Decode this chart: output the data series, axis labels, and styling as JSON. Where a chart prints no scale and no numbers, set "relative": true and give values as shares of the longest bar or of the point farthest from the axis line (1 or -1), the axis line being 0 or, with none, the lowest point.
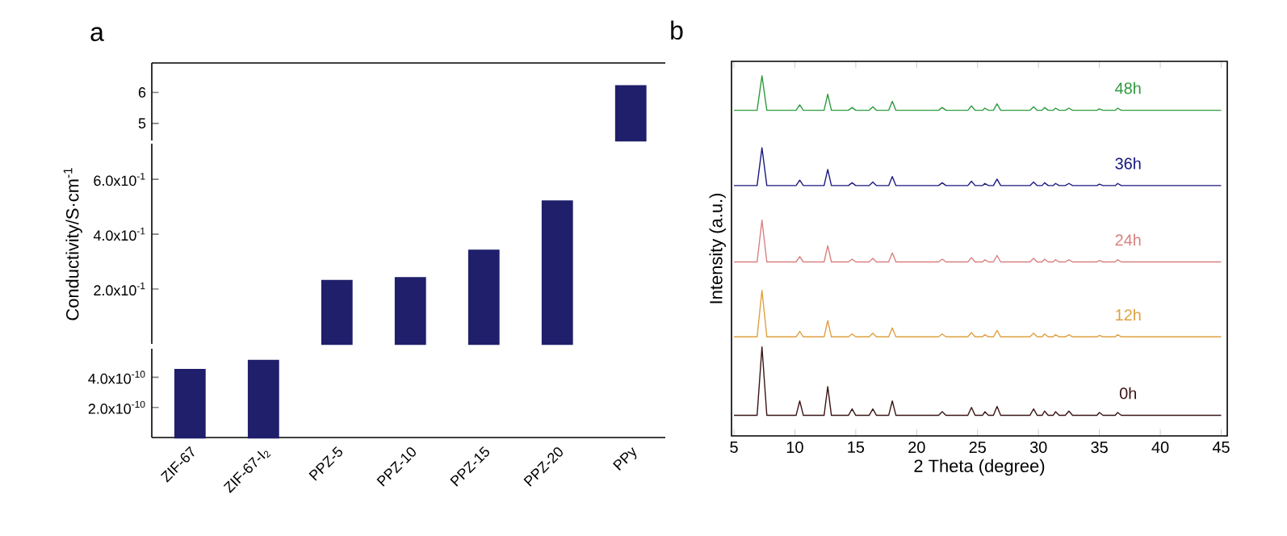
{
  "chart_data": [
    {
      "type": "bar",
      "title": "a",
      "categories": [
        null,
        null,
        null,
        null,
        null,
        null,
        null
      ],
      "values": [
        null,
        null,
        null,
        null,
        null,
        null,
        6.2
      ],
      "color": "#1f1f6b",
      "ylim": [
        4.45,
        6.95
      ],
      "yticks": [
        5,
        6
      ],
      "tick_labels": "y"
    },
    {
      "type": "bar",
      "ylabel": "Conductivity/S·cm$^{-1}$",
      "categories": [
        null,
        null,
        null,
        null,
        null,
        null,
        null
      ],
      "values": [
        null,
        null,
        0.23,
        0.24,
        0.34,
        0.52,
        null
      ],
      "color": "#1f1f6b",
      "ylim": [
        0,
        0.73
      ],
      "yticks": [
        {
          "value": 0.2,
          "label": "2.0x10$^{-1}$"
        },
        {
          "value": 0.4,
          "label": "4.0x10$^{-1}$"
        },
        {
          "value": 0.6,
          "label": "6.0x10$^{-1}$"
        }
      ],
      "tick_labels": "y"
    },
    {
      "type": "bar",
      "categories": [
        "ZIF-67",
        "ZIF-67-I$_{2}$",
        "PPZ-5",
        "PPZ-10",
        "PPZ-15",
        "PPZ-20",
        "PPy"
      ],
      "values": [
        4.5e-10,
        5.1e-10,
        null,
        null,
        null,
        null,
        null
      ],
      "color": "#1f1f6b",
      "ylim": [
        0,
        5.9e-10
      ],
      "yticks": [
        {
          "value": 2e-10,
          "label": "2.0x10$^{-10}$"
        },
        {
          "value": 4e-10,
          "label": "4.0x10$^{-10}$"
        }
      ]
    },
    {
      "type": "line",
      "title": "b",
      "xlabel": "2 Theta (degree)",
      "ylabel": "Intensity (a.u.)",
      "relative": true,
      "xlim": [
        4.8,
        45.5
      ],
      "xticks": [
        5,
        10,
        15,
        20,
        25,
        30,
        35,
        40,
        45
      ],
      "x": [
        5,
        6.9,
        7.3,
        7.7,
        9,
        10.1,
        10.4,
        10.7,
        12.4,
        12.7,
        13.0,
        14.4,
        14.7,
        15.0,
        16.1,
        16.4,
        16.7,
        17.7,
        18.0,
        18.3,
        21.8,
        22.1,
        22.4,
        24.2,
        24.5,
        24.8,
        25.4,
        25.6,
        25.9,
        26.3,
        26.6,
        26.9,
        29.3,
        29.6,
        29.9,
        30.3,
        30.5,
        30.8,
        31.2,
        31.4,
        31.7,
        32.2,
        32.5,
        32.8,
        34.8,
        35.0,
        35.3,
        36.3,
        36.5,
        36.8,
        40,
        45
      ],
      "series": [
        {
          "name": "0h",
          "color": "#3a1414",
          "values": [
            0.057,
            0.057,
            0.247,
            0.057,
            0.057,
            0.057,
            0.097,
            0.057,
            0.057,
            0.137,
            0.057,
            0.057,
            0.075,
            0.057,
            0.057,
            0.075,
            0.057,
            0.057,
            0.097,
            0.057,
            0.057,
            0.067,
            0.057,
            0.057,
            0.079,
            0.057,
            0.057,
            0.067,
            0.057,
            0.057,
            0.082,
            0.057,
            0.057,
            0.075,
            0.057,
            0.057,
            0.069,
            0.057,
            0.057,
            0.067,
            0.057,
            0.057,
            0.069,
            0.057,
            0.057,
            0.065,
            0.057,
            0.057,
            0.065,
            0.057,
            0.057,
            0.057
          ]
        },
        {
          "name": "12h",
          "color": "#e0a040",
          "values": [
            0.275,
            0.275,
            0.404,
            0.275,
            0.275,
            0.275,
            0.29,
            0.275,
            0.275,
            0.32,
            0.275,
            0.275,
            0.283,
            0.275,
            0.275,
            0.285,
            0.275,
            0.275,
            0.3,
            0.275,
            0.275,
            0.283,
            0.275,
            0.275,
            0.287,
            0.275,
            0.275,
            0.281,
            0.275,
            0.275,
            0.293,
            0.275,
            0.275,
            0.285,
            0.275,
            0.275,
            0.283,
            0.275,
            0.275,
            0.281,
            0.275,
            0.275,
            0.281,
            0.275,
            0.275,
            0.279,
            0.275,
            0.275,
            0.281,
            0.275,
            0.275,
            0.275
          ]
        },
        {
          "name": "24h",
          "color": "#d98080",
          "values": [
            0.483,
            0.483,
            0.599,
            0.483,
            0.483,
            0.483,
            0.498,
            0.483,
            0.483,
            0.528,
            0.483,
            0.483,
            0.491,
            0.483,
            0.483,
            0.493,
            0.483,
            0.483,
            0.508,
            0.483,
            0.483,
            0.491,
            0.483,
            0.483,
            0.495,
            0.483,
            0.483,
            0.489,
            0.483,
            0.483,
            0.501,
            0.483,
            0.483,
            0.493,
            0.483,
            0.483,
            0.491,
            0.483,
            0.483,
            0.489,
            0.483,
            0.483,
            0.489,
            0.483,
            0.483,
            0.487,
            0.483,
            0.483,
            0.489,
            0.483,
            0.483,
            0.483
          ]
        },
        {
          "name": "36h",
          "color": "#1a1a80",
          "values": [
            0.695,
            0.695,
            0.8,
            0.695,
            0.695,
            0.695,
            0.71,
            0.695,
            0.695,
            0.74,
            0.695,
            0.695,
            0.703,
            0.695,
            0.695,
            0.705,
            0.695,
            0.695,
            0.72,
            0.695,
            0.695,
            0.703,
            0.695,
            0.695,
            0.707,
            0.695,
            0.695,
            0.701,
            0.695,
            0.695,
            0.713,
            0.695,
            0.695,
            0.705,
            0.695,
            0.695,
            0.703,
            0.695,
            0.695,
            0.701,
            0.695,
            0.695,
            0.701,
            0.695,
            0.695,
            0.699,
            0.695,
            0.695,
            0.701,
            0.695,
            0.695,
            0.695
          ]
        },
        {
          "name": "48h",
          "color": "#2e9a3e",
          "values": [
            0.904,
            0.904,
            1,
            0.904,
            0.904,
            0.904,
            0.919,
            0.904,
            0.904,
            0.949,
            0.904,
            0.904,
            0.912,
            0.904,
            0.904,
            0.914,
            0.904,
            0.904,
            0.929,
            0.904,
            0.904,
            0.912,
            0.904,
            0.904,
            0.916,
            0.904,
            0.904,
            0.91,
            0.904,
            0.904,
            0.922,
            0.904,
            0.904,
            0.914,
            0.904,
            0.904,
            0.912,
            0.904,
            0.904,
            0.91,
            0.904,
            0.904,
            0.91,
            0.904,
            0.904,
            0.908,
            0.904,
            0.904,
            0.91,
            0.904,
            0.904,
            0.904
          ]
        }
      ]
    }
  ]
}
